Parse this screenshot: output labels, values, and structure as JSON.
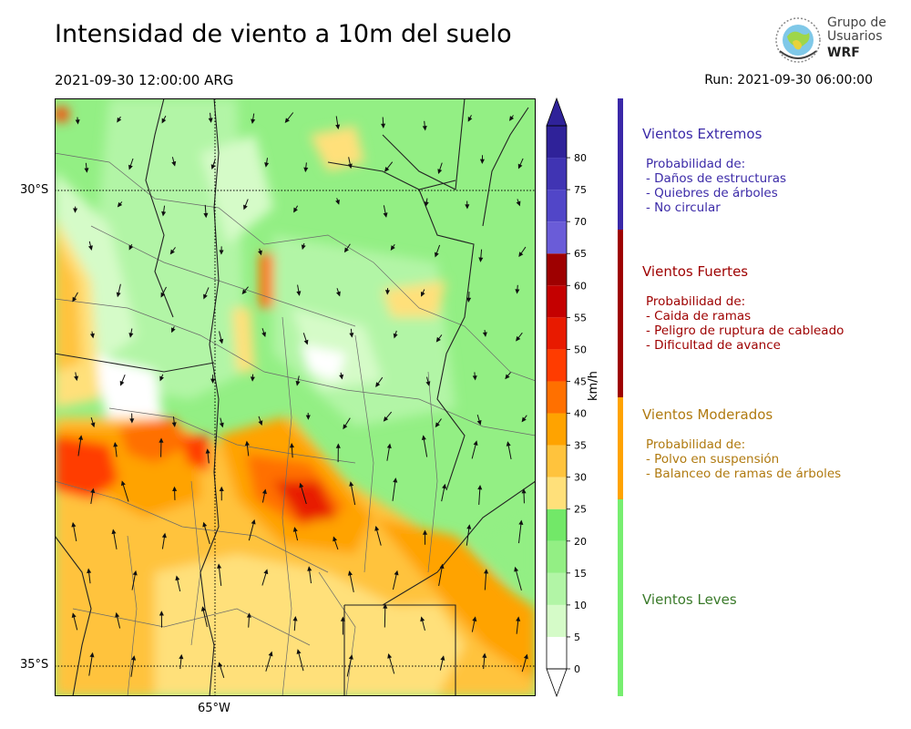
{
  "header": {
    "title": "Intensidad de viento a 10m del suelo",
    "valid_time": "2021-09-30 12:00:00 ARG",
    "run": "Run: 2021-09-30 06:00:00"
  },
  "logo": {
    "line1": "Grupo de",
    "line2": "Usuarios",
    "line3": "WRF"
  },
  "map_axes": {
    "lat_labels": [
      "30°S",
      "35°S"
    ],
    "lon_labels": [
      "65°W"
    ]
  },
  "colorbar": {
    "units": "km/h",
    "ticks": [
      "0",
      "5",
      "10",
      "15",
      "20",
      "25",
      "30",
      "35",
      "40",
      "45",
      "50",
      "55",
      "60",
      "65",
      "70",
      "75",
      "80"
    ],
    "colors": [
      "#ffffff",
      "#d5fbc8",
      "#b2f5a6",
      "#93ef84",
      "#72e868",
      "#ffe07a",
      "#ffc33d",
      "#ffa300",
      "#ff7000",
      "#ff3c00",
      "#e81a00",
      "#c40000",
      "#9e0000",
      "#6a5cd8",
      "#5146c8",
      "#4034b3",
      "#2f2299"
    ],
    "colors_note": ""
  },
  "legend": {
    "categories": [
      {
        "name": "Vientos Extremos",
        "color": "#3c2ba8",
        "band_color": "#3a28a8",
        "lines": [
          "Probabilidad de:",
          "- Daños de estructuras",
          "- Quiebres de árboles",
          "- No circular"
        ]
      },
      {
        "name": "Vientos Fuertes",
        "color": "#9e0000",
        "band_color": "#9e0000",
        "lines": [
          "Probabilidad de:",
          "- Caida de ramas",
          "- Peligro de ruptura de cableado",
          "- Dificultad de avance"
        ]
      },
      {
        "name": "Vientos Moderados",
        "color": "#b07a10",
        "band_color": "#ffa300",
        "lines": [
          "Probabilidad de:",
          "- Polvo en suspensión",
          "- Balanceo de ramas de árboles"
        ]
      },
      {
        "name": "Vientos Leves",
        "color": "#3a7a2a",
        "band_color": "#77ee70",
        "lines": []
      }
    ]
  }
}
